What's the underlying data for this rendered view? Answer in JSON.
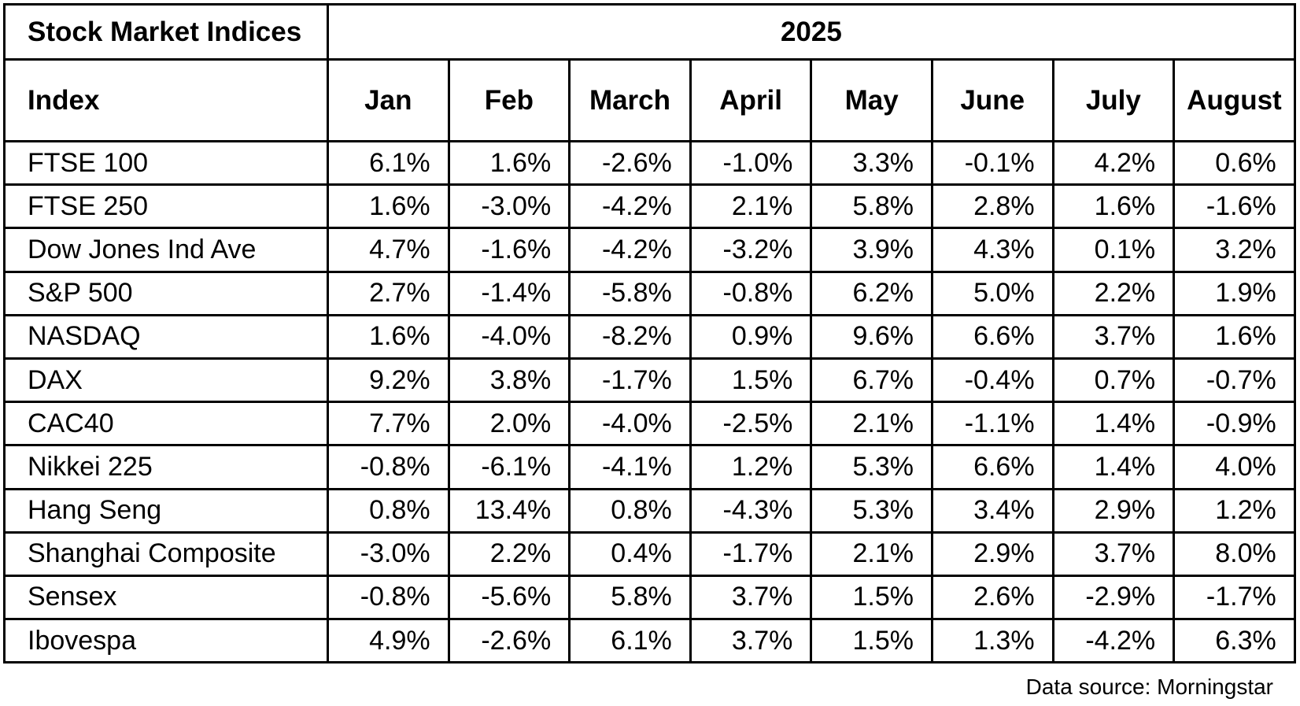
{
  "header": {
    "corner_label": "Stock Market Indices",
    "year_label": "2025",
    "index_label": "Index"
  },
  "chart_data": {
    "type": "table",
    "columns": [
      "Jan",
      "Feb",
      "March",
      "April",
      "May",
      "June",
      "July",
      "August"
    ],
    "rows": [
      {
        "index": "FTSE 100",
        "values": [
          "6.1%",
          "1.6%",
          "-2.6%",
          "-1.0%",
          "3.3%",
          "-0.1%",
          "4.2%",
          "0.6%"
        ]
      },
      {
        "index": "FTSE 250",
        "values": [
          "1.6%",
          "-3.0%",
          "-4.2%",
          "2.1%",
          "5.8%",
          "2.8%",
          "1.6%",
          "-1.6%"
        ]
      },
      {
        "index": "Dow Jones Ind Ave",
        "values": [
          "4.7%",
          "-1.6%",
          "-4.2%",
          "-3.2%",
          "3.9%",
          "4.3%",
          "0.1%",
          "3.2%"
        ]
      },
      {
        "index": "S&P 500",
        "values": [
          "2.7%",
          "-1.4%",
          "-5.8%",
          "-0.8%",
          "6.2%",
          "5.0%",
          "2.2%",
          "1.9%"
        ]
      },
      {
        "index": "NASDAQ",
        "values": [
          "1.6%",
          "-4.0%",
          "-8.2%",
          "0.9%",
          "9.6%",
          "6.6%",
          "3.7%",
          "1.6%"
        ]
      },
      {
        "index": "DAX",
        "values": [
          "9.2%",
          "3.8%",
          "-1.7%",
          "1.5%",
          "6.7%",
          "-0.4%",
          "0.7%",
          "-0.7%"
        ]
      },
      {
        "index": "CAC40",
        "values": [
          "7.7%",
          "2.0%",
          "-4.0%",
          "-2.5%",
          "2.1%",
          "-1.1%",
          "1.4%",
          "-0.9%"
        ]
      },
      {
        "index": "Nikkei 225",
        "values": [
          "-0.8%",
          "-6.1%",
          "-4.1%",
          "1.2%",
          "5.3%",
          "6.6%",
          "1.4%",
          "4.0%"
        ]
      },
      {
        "index": "Hang Seng",
        "values": [
          "0.8%",
          "13.4%",
          "0.8%",
          "-4.3%",
          "5.3%",
          "3.4%",
          "2.9%",
          "1.2%"
        ]
      },
      {
        "index": "Shanghai Composite",
        "values": [
          "-3.0%",
          "2.2%",
          "0.4%",
          "-1.7%",
          "2.1%",
          "2.9%",
          "3.7%",
          "8.0%"
        ]
      },
      {
        "index": "Sensex",
        "values": [
          "-0.8%",
          "-5.6%",
          "5.8%",
          "3.7%",
          "1.5%",
          "2.6%",
          "-2.9%",
          "-1.7%"
        ]
      },
      {
        "index": "Ibovespa",
        "values": [
          "4.9%",
          "-2.6%",
          "6.1%",
          "3.7%",
          "1.5%",
          "1.3%",
          "-4.2%",
          "6.3%"
        ]
      }
    ]
  },
  "footer": {
    "source": "Data source: Morningstar"
  }
}
